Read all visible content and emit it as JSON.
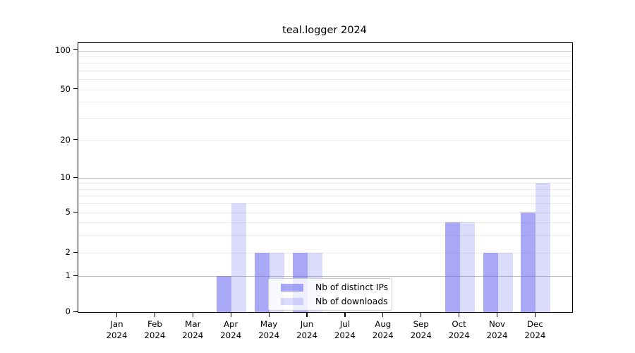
{
  "title": "teal.logger 2024",
  "colors": {
    "distinct_ips": "rgba(100,100,240,0.56)",
    "downloads": "rgba(100,100,240,0.23)",
    "grid_major": "#c0c0c0",
    "grid_minor": "#ececec",
    "axis_line": "#000000",
    "legend_border": "#cccccc",
    "legend_background": "rgba(255,255,255,0.8)"
  },
  "legend": {
    "items": [
      {
        "label": "Nb of distinct IPs",
        "color_key": "distinct_ips"
      },
      {
        "label": "Nb of downloads",
        "color_key": "downloads"
      }
    ]
  },
  "axes": {
    "ytick_labels": [
      "0",
      "1",
      "2",
      "5",
      "10",
      "20",
      "50",
      "100"
    ],
    "xtick_month_labels": [
      "Jan",
      "Feb",
      "Mar",
      "Apr",
      "May",
      "Jun",
      "Jul",
      "Aug",
      "Sep",
      "Oct",
      "Nov",
      "Dec"
    ],
    "xtick_year_label": "2024"
  },
  "chart_data": {
    "type": "bar",
    "title": "teal.logger 2024",
    "categories": [
      "Jan 2024",
      "Feb 2024",
      "Mar 2024",
      "Apr 2024",
      "May 2024",
      "Jun 2024",
      "Jul 2024",
      "Aug 2024",
      "Sep 2024",
      "Oct 2024",
      "Nov 2024",
      "Dec 2024"
    ],
    "series": [
      {
        "name": "Nb of distinct IPs",
        "values": [
          0,
          0,
          0,
          1,
          2,
          2,
          0,
          0,
          0,
          4,
          2,
          5
        ]
      },
      {
        "name": "Nb of downloads",
        "values": [
          0,
          0,
          0,
          6,
          2,
          2,
          0,
          0,
          0,
          4,
          2,
          9
        ]
      }
    ],
    "xlabel": "",
    "ylabel": "",
    "yscale": "symlog",
    "ylim": [
      0,
      115
    ],
    "yticks": [
      0,
      1,
      2,
      5,
      10,
      20,
      50,
      100
    ],
    "minor_gridlines": [
      3,
      4,
      6,
      7,
      8,
      9,
      30,
      40,
      60,
      70,
      80,
      90
    ],
    "grid": "horizontal",
    "legend_position": "inside lower-center"
  }
}
